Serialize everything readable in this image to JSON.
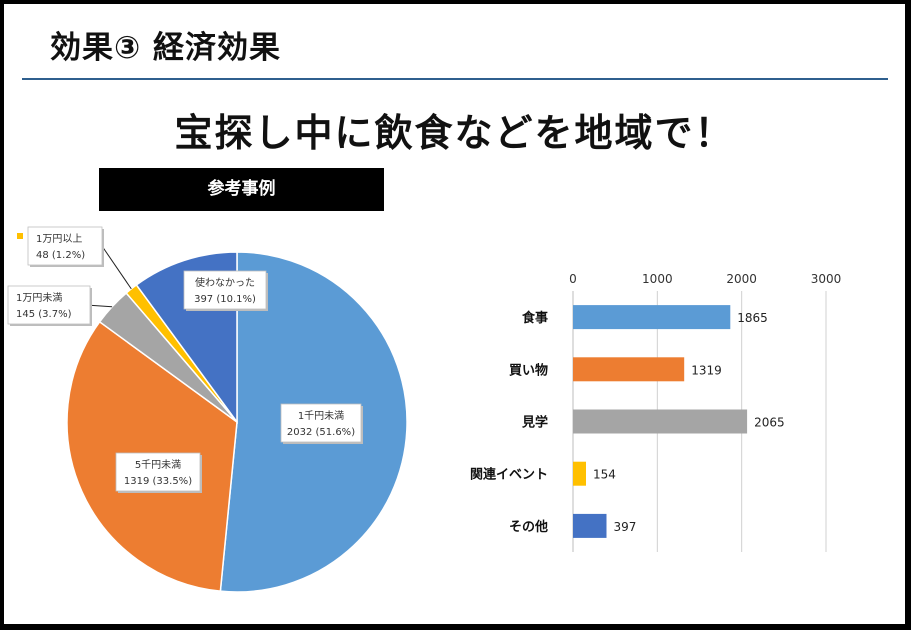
{
  "slide": {
    "title": "効果③ 経済効果",
    "headline": "宝探し中に飲食などを地域で！",
    "reference_label": "参考事例"
  },
  "chart_data": [
    {
      "type": "pie",
      "categories": [
        "1千円未満",
        "5千円未満",
        "1万円未満",
        "1万円以上",
        "使わなかった"
      ],
      "values": [
        2032,
        1319,
        145,
        48,
        397
      ],
      "percent_labels": [
        "2032 (51.6%)",
        "1319 (33.5%)",
        "145 (3.7%)",
        "48 (1.2%)",
        "397 (10.1%)"
      ],
      "colors": [
        "#5b9bd5",
        "#ed7d31",
        "#a5a5a5",
        "#ffc000",
        "#4472c4"
      ]
    },
    {
      "type": "bar",
      "orientation": "horizontal",
      "categories": [
        "食事",
        "買い物",
        "見学",
        "関連イベント",
        "その他"
      ],
      "values": [
        1865,
        1319,
        2065,
        154,
        397
      ],
      "colors": [
        "#5b9bd5",
        "#ed7d31",
        "#a5a5a5",
        "#ffc000",
        "#4472c4"
      ],
      "xlim": [
        0,
        3000
      ],
      "xticks": [
        "0",
        "1000",
        "2000",
        "3000"
      ],
      "axis_position": "top",
      "grid": true
    }
  ]
}
